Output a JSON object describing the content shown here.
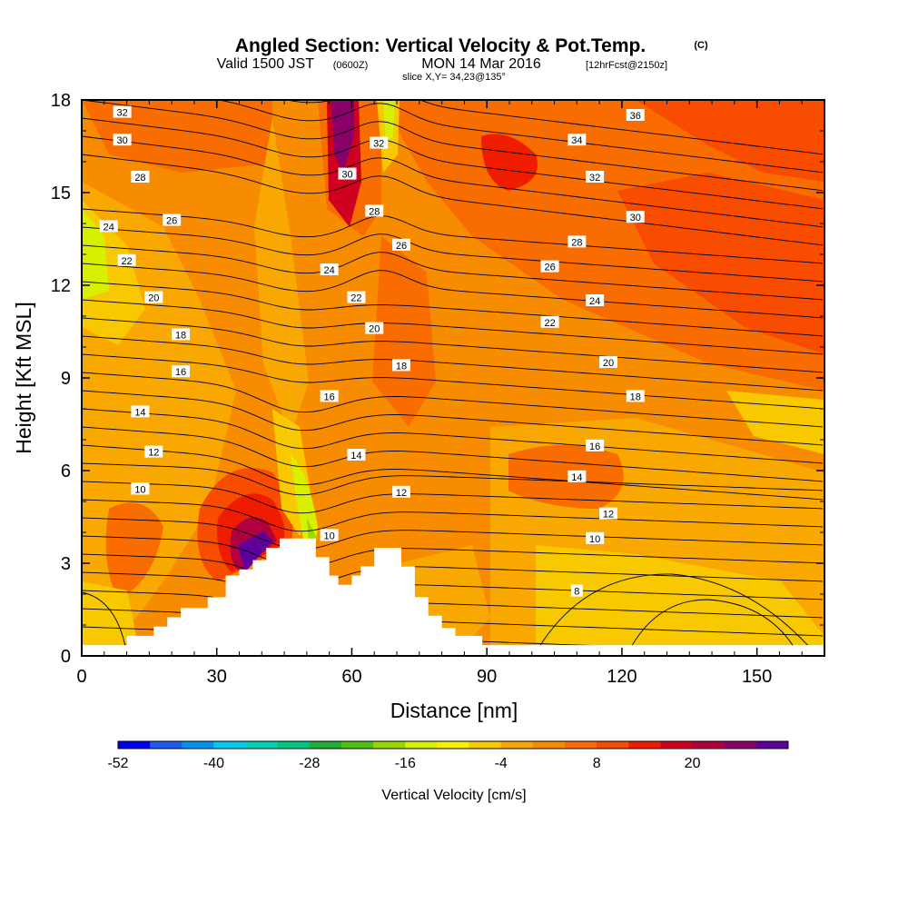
{
  "title": {
    "main": "Angled Section: Vertical Velocity & Pot.Temp.",
    "unit": "(C)",
    "valid_prefix": "Valid 1500 JST",
    "utc": "(0600Z)",
    "date": "MON 14 Mar 2016",
    "forecast": "[12hrFcst@2150z]",
    "slice": "slice X,Y= 34,23@135°"
  },
  "chart_data": {
    "type": "heatmap",
    "xlabel": "Distance [nm]",
    "ylabel": "Height [Kft MSL]",
    "xlim": [
      0,
      165
    ],
    "ylim": [
      0,
      18
    ],
    "x_ticks": [
      0,
      30,
      60,
      90,
      120,
      150
    ],
    "y_ticks": [
      0,
      3,
      6,
      9,
      12,
      15,
      18
    ],
    "terrain_profile": [
      [
        0,
        0.35
      ],
      [
        10,
        0.35
      ],
      [
        10,
        0.65
      ],
      [
        16,
        0.65
      ],
      [
        16,
        0.95
      ],
      [
        19,
        0.95
      ],
      [
        19,
        1.25
      ],
      [
        22,
        1.25
      ],
      [
        22,
        1.55
      ],
      [
        28,
        1.55
      ],
      [
        28,
        1.9
      ],
      [
        32,
        1.9
      ],
      [
        32,
        2.6
      ],
      [
        35,
        2.6
      ],
      [
        35,
        2.8
      ],
      [
        38,
        2.8
      ],
      [
        38,
        3.1
      ],
      [
        41,
        3.1
      ],
      [
        41,
        3.5
      ],
      [
        44,
        3.5
      ],
      [
        44,
        3.8
      ],
      [
        52,
        3.8
      ],
      [
        52,
        3.2
      ],
      [
        55,
        3.2
      ],
      [
        55,
        2.6
      ],
      [
        57,
        2.6
      ],
      [
        57,
        2.3
      ],
      [
        60,
        2.3
      ],
      [
        60,
        2.6
      ],
      [
        62,
        2.6
      ],
      [
        62,
        2.9
      ],
      [
        65,
        2.9
      ],
      [
        65,
        3.5
      ],
      [
        71,
        3.5
      ],
      [
        71,
        2.9
      ],
      [
        74,
        2.9
      ],
      [
        74,
        1.9
      ],
      [
        77,
        1.9
      ],
      [
        77,
        1.3
      ],
      [
        80,
        1.3
      ],
      [
        80,
        0.9
      ],
      [
        83,
        0.9
      ],
      [
        83,
        0.65
      ],
      [
        89,
        0.65
      ],
      [
        89,
        0.35
      ],
      [
        165,
        0.35
      ]
    ],
    "theta_contour_labels": [
      {
        "text": "32",
        "x": 9,
        "y": 17.6
      },
      {
        "text": "30",
        "x": 9,
        "y": 16.7
      },
      {
        "text": "28",
        "x": 13,
        "y": 15.5
      },
      {
        "text": "24",
        "x": 6,
        "y": 13.9
      },
      {
        "text": "26",
        "x": 20,
        "y": 14.1
      },
      {
        "text": "22",
        "x": 10,
        "y": 12.8
      },
      {
        "text": "20",
        "x": 16,
        "y": 11.6
      },
      {
        "text": "18",
        "x": 22,
        "y": 10.4
      },
      {
        "text": "16",
        "x": 22,
        "y": 9.2
      },
      {
        "text": "14",
        "x": 13,
        "y": 7.9
      },
      {
        "text": "12",
        "x": 16,
        "y": 6.6
      },
      {
        "text": "10",
        "x": 13,
        "y": 5.4
      },
      {
        "text": "30",
        "x": 59,
        "y": 15.6
      },
      {
        "text": "32",
        "x": 66,
        "y": 16.6
      },
      {
        "text": "28",
        "x": 65,
        "y": 14.4
      },
      {
        "text": "26",
        "x": 71,
        "y": 13.3
      },
      {
        "text": "24",
        "x": 55,
        "y": 12.5
      },
      {
        "text": "22",
        "x": 61,
        "y": 11.6
      },
      {
        "text": "20",
        "x": 65,
        "y": 10.6
      },
      {
        "text": "18",
        "x": 71,
        "y": 9.4
      },
      {
        "text": "16",
        "x": 55,
        "y": 8.4
      },
      {
        "text": "14",
        "x": 61,
        "y": 6.5
      },
      {
        "text": "12",
        "x": 71,
        "y": 5.3
      },
      {
        "text": "10",
        "x": 55,
        "y": 3.9
      },
      {
        "text": "36",
        "x": 123,
        "y": 17.5
      },
      {
        "text": "34",
        "x": 110,
        "y": 16.7
      },
      {
        "text": "32",
        "x": 114,
        "y": 15.5
      },
      {
        "text": "30",
        "x": 123,
        "y": 14.2
      },
      {
        "text": "28",
        "x": 110,
        "y": 13.4
      },
      {
        "text": "26",
        "x": 104,
        "y": 12.6
      },
      {
        "text": "24",
        "x": 114,
        "y": 11.5
      },
      {
        "text": "22",
        "x": 104,
        "y": 10.8
      },
      {
        "text": "20",
        "x": 117,
        "y": 9.5
      },
      {
        "text": "18",
        "x": 123,
        "y": 8.4
      },
      {
        "text": "16",
        "x": 114,
        "y": 6.8
      },
      {
        "text": "14",
        "x": 110,
        "y": 5.8
      },
      {
        "text": "12",
        "x": 117,
        "y": 4.6
      },
      {
        "text": "10",
        "x": 114,
        "y": 3.8
      },
      {
        "text": "8",
        "x": 110,
        "y": 2.1
      }
    ],
    "colorbar": {
      "label": "Vertical Velocity [cm/s]",
      "ticks": [
        "-52",
        "-40",
        "-28",
        "-16",
        "-4",
        "8",
        "20"
      ],
      "colors": [
        "#0000f0",
        "#1c5cf0",
        "#0094f0",
        "#00ccf0",
        "#00d4b4",
        "#00c880",
        "#20b038",
        "#50c010",
        "#98d800",
        "#d8f000",
        "#f8f000",
        "#f8c800",
        "#f8a800",
        "#f88c00",
        "#f86c00",
        "#f84c00",
        "#f01c00",
        "#d00020",
        "#b00040",
        "#880068",
        "#60009c"
      ]
    }
  }
}
